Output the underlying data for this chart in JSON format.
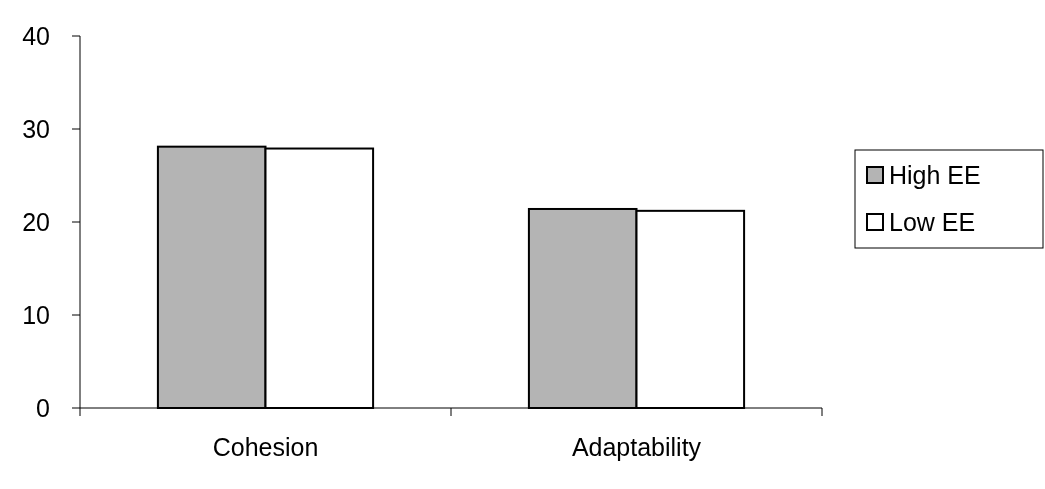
{
  "chart_data": {
    "type": "bar",
    "categories": [
      "Cohesion",
      "Adaptability"
    ],
    "series": [
      {
        "name": "High EE",
        "color": "#b4b4b4",
        "values": [
          28.1,
          21.4
        ]
      },
      {
        "name": "Low EE",
        "color": "#ffffff",
        "values": [
          27.9,
          21.2
        ]
      }
    ],
    "ylim": [
      0,
      40
    ],
    "yticks": [
      0,
      10,
      20,
      30,
      40
    ],
    "grid": false,
    "legend": "right"
  }
}
